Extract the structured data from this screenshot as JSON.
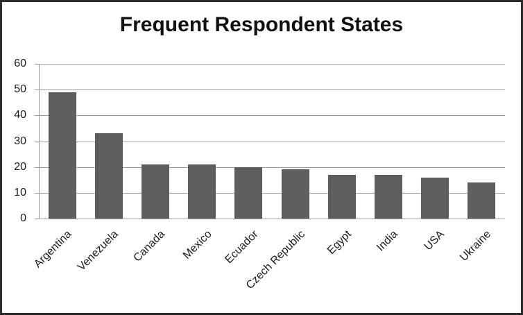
{
  "chart_data": {
    "type": "bar",
    "title": "Frequent Respondent States",
    "categories": [
      "Argentina",
      "Venezuela",
      "Canada",
      "Mexico",
      "Ecuador",
      "Czech Republic",
      "Egypt",
      "India",
      "USA",
      "Ukraine"
    ],
    "values": [
      49,
      33,
      21,
      21,
      20,
      19,
      17,
      17,
      16,
      14
    ],
    "xlabel": "",
    "ylabel": "",
    "ylim": [
      0,
      60
    ],
    "yticks": [
      0,
      10,
      20,
      30,
      40,
      50,
      60
    ],
    "grid": "horizontal",
    "legend": "none",
    "x_label_rotation_deg": -45
  },
  "colors": {
    "bar": "#5e5e5e",
    "gridline": "#9b9b9b",
    "axis": "#9b9b9b",
    "text": "#1a1a1a",
    "frame_border": "#2b2b2b",
    "background": "#ffffff"
  }
}
